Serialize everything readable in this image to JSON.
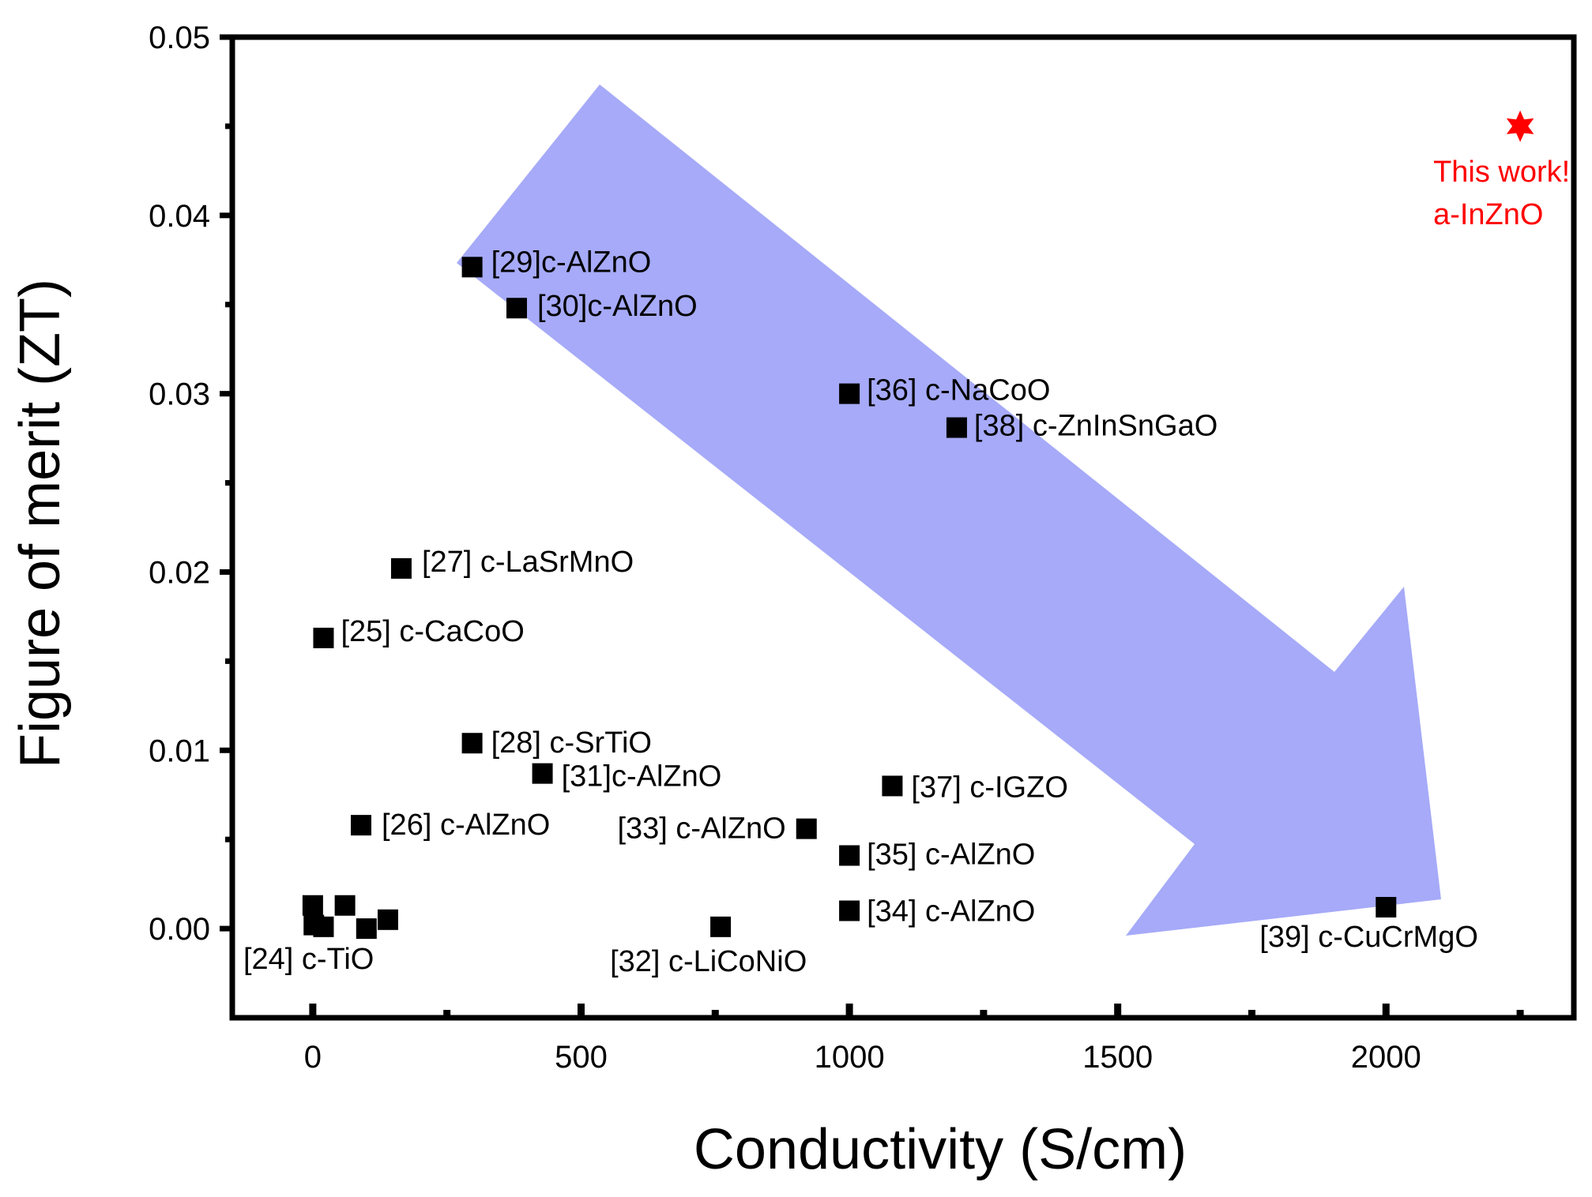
{
  "chart_data": {
    "type": "scatter",
    "title": "",
    "xlabel": "Conductivity (S/cm)",
    "ylabel": "Figure of merit (ZT)",
    "xlim": [
      -150,
      2350
    ],
    "ylim": [
      -0.005,
      0.05
    ],
    "xticks": [
      0,
      500,
      1000,
      1500,
      2000
    ],
    "xtick_labels": [
      "0",
      "500",
      "1000",
      "1500",
      "2000"
    ],
    "yticks": [
      0.0,
      0.01,
      0.02,
      0.03,
      0.04,
      0.05
    ],
    "ytick_labels": [
      "0.00",
      "0.01",
      "0.02",
      "0.03",
      "0.04",
      "0.05"
    ],
    "grid": false,
    "points": [
      {
        "x": 0,
        "y": 0.0013,
        "label": ""
      },
      {
        "x": 2,
        "y": 0.0002,
        "label": ""
      },
      {
        "x": 20,
        "y": 0.0001,
        "label": ""
      },
      {
        "x": 60,
        "y": 0.0013,
        "label": ""
      },
      {
        "x": 100,
        "y": 0.0,
        "label": ""
      },
      {
        "x": 140,
        "y": 0.0005,
        "label": "[24] c-TiO"
      },
      {
        "x": 20,
        "y": 0.0163,
        "label": "[25] c-CaCoO"
      },
      {
        "x": 90,
        "y": 0.0058,
        "label": "[26] c-AlZnO"
      },
      {
        "x": 165,
        "y": 0.0202,
        "label": "[27] c-LaSrMnO"
      },
      {
        "x": 297,
        "y": 0.0104,
        "label": "[28] c-SrTiO"
      },
      {
        "x": 297,
        "y": 0.0371,
        "label": "[29]c-AlZnO"
      },
      {
        "x": 380,
        "y": 0.0348,
        "label": "[30]c-AlZnO"
      },
      {
        "x": 428,
        "y": 0.0087,
        "label": "[31]c-AlZnO"
      },
      {
        "x": 760,
        "y": 0.0001,
        "label": "[32] c-LiCoNiO"
      },
      {
        "x": 920,
        "y": 0.0056,
        "label": "[33] c-AlZnO"
      },
      {
        "x": 1000,
        "y": 0.001,
        "label": "[34] c-AlZnO"
      },
      {
        "x": 1000,
        "y": 0.0041,
        "label": "[35] c-AlZnO"
      },
      {
        "x": 1000,
        "y": 0.03,
        "label": "[36] c-NaCoO"
      },
      {
        "x": 1080,
        "y": 0.008,
        "label": "[37] c-IGZO"
      },
      {
        "x": 1200,
        "y": 0.0281,
        "label": "[38] c-ZnInSnGaO"
      },
      {
        "x": 2000,
        "y": 0.0012,
        "label": "[39] c-CuCrMgO"
      }
    ],
    "highlight": {
      "x": 2250,
      "y": 0.045,
      "line1": "This work!",
      "line2": "a-InZnO",
      "color": "#ff0000"
    },
    "arrow": {
      "from": [
        400,
        0.0395
      ],
      "to": [
        2100,
        0.002
      ],
      "color": "#a6aaf8",
      "meaning": "trend"
    }
  }
}
